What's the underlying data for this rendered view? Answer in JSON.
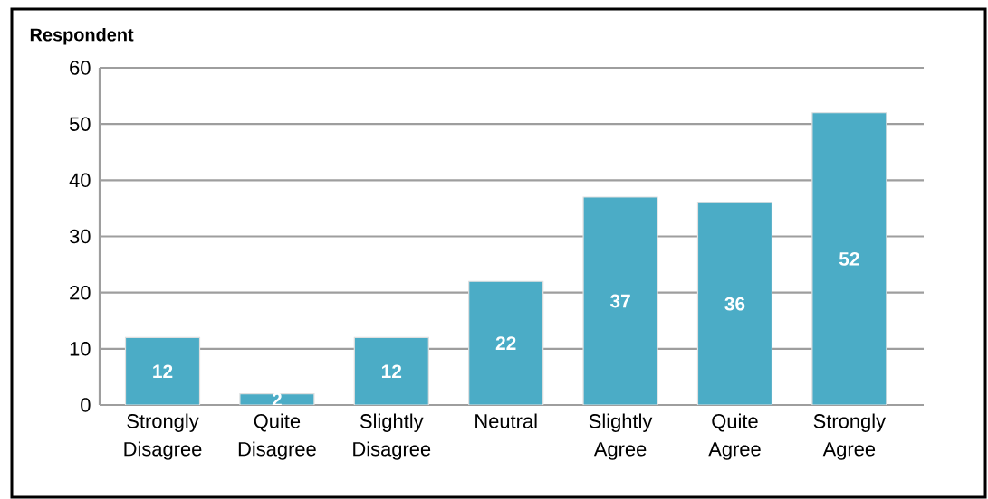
{
  "chart_data": {
    "type": "bar",
    "ylabel": "Respondent",
    "categories": [
      "Strongly Disagree",
      "Quite Disagree",
      "Slightly Disagree",
      "Neutral",
      "Slightly Agree",
      "Quite Agree",
      "Strongly Agree"
    ],
    "values": [
      12,
      2,
      12,
      22,
      37,
      36,
      52
    ],
    "color": "#4bacc6",
    "ylim": [
      0,
      60
    ],
    "yticks": [
      0,
      10,
      20,
      30,
      40,
      50,
      60
    ],
    "grid": "y",
    "data_labels": true
  }
}
